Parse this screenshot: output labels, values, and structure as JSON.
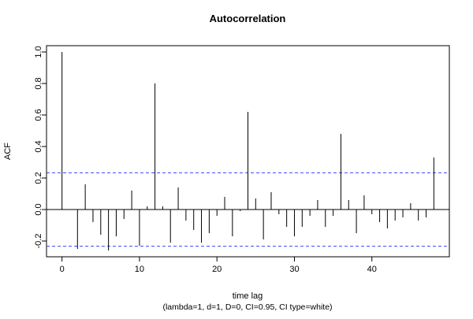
{
  "chart_data": {
    "type": "bar",
    "title": "Autocorrelation",
    "xlabel": "time lag",
    "subtitle": "(lambda=1, d=1, D=0, CI=0.95, CI type=white)",
    "ylabel": "ACF",
    "xlim": [
      -2,
      50
    ],
    "ylim": [
      -0.3,
      1.04
    ],
    "x_ticks": [
      0,
      10,
      20,
      30,
      40
    ],
    "y_ticks": [
      -0.2,
      0.0,
      0.2,
      0.4,
      0.6,
      0.8,
      1.0
    ],
    "y_tick_labels": [
      "-0.2",
      "0.0",
      "0.2",
      "0.4",
      "0.6",
      "0.8",
      "1.0"
    ],
    "ci_lines": [
      0.233,
      -0.233
    ],
    "ci_color": "#4040ff",
    "bar_color": "#000000",
    "lags": [
      0,
      1,
      2,
      3,
      4,
      5,
      6,
      7,
      8,
      9,
      10,
      11,
      12,
      13,
      14,
      15,
      16,
      17,
      18,
      19,
      20,
      21,
      22,
      23,
      24,
      25,
      26,
      27,
      28,
      29,
      30,
      31,
      32,
      33,
      34,
      35,
      36,
      37,
      38,
      39,
      40,
      41,
      42,
      43,
      44,
      45,
      46,
      47,
      48
    ],
    "values": [
      1.0,
      0.0,
      -0.25,
      0.16,
      -0.08,
      -0.16,
      -0.26,
      -0.17,
      -0.06,
      0.12,
      -0.23,
      0.02,
      0.8,
      0.02,
      -0.21,
      0.14,
      -0.07,
      -0.13,
      -0.21,
      -0.15,
      -0.04,
      0.08,
      -0.17,
      -0.01,
      0.62,
      0.07,
      -0.19,
      0.11,
      -0.03,
      -0.11,
      -0.17,
      -0.11,
      -0.04,
      0.06,
      -0.11,
      -0.04,
      0.48,
      0.06,
      -0.15,
      0.09,
      -0.03,
      -0.08,
      -0.12,
      -0.07,
      -0.05,
      0.04,
      -0.07,
      -0.05,
      0.33
    ]
  }
}
